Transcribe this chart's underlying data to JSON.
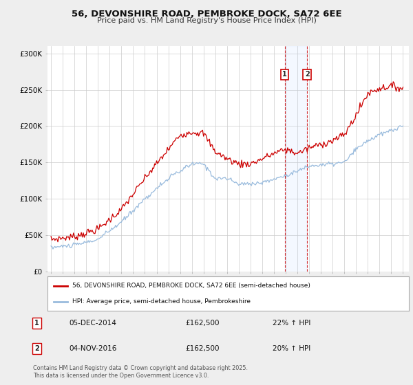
{
  "title_line1": "56, DEVONSHIRE ROAD, PEMBROKE DOCK, SA72 6EE",
  "title_line2": "Price paid vs. HM Land Registry's House Price Index (HPI)",
  "ylim": [
    0,
    310000
  ],
  "yticks": [
    0,
    50000,
    100000,
    150000,
    200000,
    250000,
    300000
  ],
  "ytick_labels": [
    "£0",
    "£50K",
    "£100K",
    "£150K",
    "£200K",
    "£250K",
    "£300K"
  ],
  "background_color": "#eeeeee",
  "plot_background": "#ffffff",
  "red_line_color": "#cc0000",
  "blue_line_color": "#99bbdd",
  "purchase1_year": 2014.92,
  "purchase2_year": 2016.83,
  "purchase1_date": "05-DEC-2014",
  "purchase1_price": "£162,500",
  "purchase1_hpi": "22% ↑ HPI",
  "purchase2_date": "04-NOV-2016",
  "purchase2_price": "£162,500",
  "purchase2_hpi": "20% ↑ HPI",
  "legend_label1": "56, DEVONSHIRE ROAD, PEMBROKE DOCK, SA72 6EE (semi-detached house)",
  "legend_label2": "HPI: Average price, semi-detached house, Pembrokeshire",
  "footer_line1": "Contains HM Land Registry data © Crown copyright and database right 2025.",
  "footer_line2": "This data is licensed under the Open Government Licence v3.0.",
  "xstart_year": 1995,
  "xend_year": 2025
}
